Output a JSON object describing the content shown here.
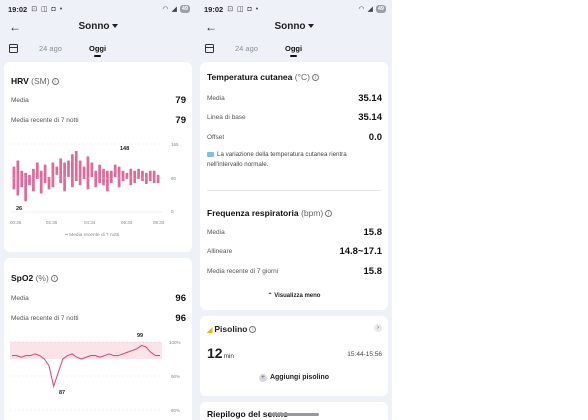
{
  "left": {
    "status": {
      "time": "19:02",
      "icons": "⊡ ◫ ◘ •",
      "battery": "49"
    },
    "header": {
      "title": "Sonno"
    },
    "tabs": {
      "prev": "24 ago",
      "current": "Oggi"
    },
    "hrv": {
      "title": "HRV",
      "unit": "(SM)",
      "rows": [
        {
          "label": "Media",
          "value": "79"
        },
        {
          "label": "Media recente di 7 notti",
          "value": "79"
        }
      ],
      "chart": {
        "y_ticks": [
          "165",
          "80",
          "0"
        ],
        "x_ticks": [
          "00:36",
          "02:35",
          "04:34",
          "06:33",
          "08:33"
        ],
        "max_label": "148",
        "min_label": "26",
        "legend": "Media recente di 7 notti"
      }
    },
    "spo2": {
      "title": "SpO2",
      "unit": "(%)",
      "rows": [
        {
          "label": "Media",
          "value": "96"
        },
        {
          "label": "Media recente di 7 notti",
          "value": "96"
        }
      ],
      "chart": {
        "y_ticks": [
          "100%",
          "90%",
          "80%"
        ],
        "max_label": "99",
        "min_label": "87"
      }
    }
  },
  "right": {
    "status": {
      "time": "19:02",
      "icons": "⊡ ◫ ◘ •",
      "battery": "49"
    },
    "header": {
      "title": "Sonno"
    },
    "tabs": {
      "prev": "24 ago",
      "current": "Oggi"
    },
    "skin_temp": {
      "title": "Temperatura cutanea",
      "unit": "(°C)",
      "rows": [
        {
          "label": "Media",
          "value": "35.14"
        },
        {
          "label": "Linea di base",
          "value": "35.14"
        },
        {
          "label": "Offset",
          "value": "0.0"
        }
      ],
      "note": "La variazione della temperatura cutanea rientra nell'intervallo normale."
    },
    "resp": {
      "title": "Frequenza respiratoria",
      "unit": "(bpm)",
      "rows": [
        {
          "label": "Media",
          "value": "15.8"
        },
        {
          "label": "Allineare",
          "value": "14.8~17.1"
        },
        {
          "label": "Media recente di 7 giorni",
          "value": "15.8"
        }
      ],
      "toggle": "Visualizza meno"
    },
    "nap": {
      "title": "Pisolino",
      "duration": "12",
      "duration_unit": "min",
      "time_range": "15:44-15:56",
      "add_label": "Aggiungi pisolino"
    },
    "summary": {
      "title": "Riepilogo del sonno"
    }
  },
  "chart_data": [
    {
      "type": "bar",
      "title": "HRV",
      "ylabel": "(SM)",
      "ylim": [
        0,
        165
      ],
      "y_ticks": [
        165,
        80,
        0
      ],
      "x_ticks": [
        "00:36",
        "02:35",
        "04:34",
        "06:33",
        "08:33"
      ],
      "range_bars": [
        [
          55,
          110
        ],
        [
          40,
          125
        ],
        [
          60,
          100
        ],
        [
          26,
          95
        ],
        [
          65,
          90
        ],
        [
          50,
          105
        ],
        [
          80,
          120
        ],
        [
          45,
          100
        ],
        [
          70,
          115
        ],
        [
          55,
          85
        ],
        [
          60,
          120
        ],
        [
          90,
          110
        ],
        [
          70,
          130
        ],
        [
          50,
          120
        ],
        [
          85,
          125
        ],
        [
          60,
          140
        ],
        [
          75,
          148
        ],
        [
          65,
          125
        ],
        [
          80,
          110
        ],
        [
          55,
          135
        ],
        [
          85,
          120
        ],
        [
          60,
          100
        ],
        [
          70,
          115
        ],
        [
          65,
          105
        ],
        [
          50,
          100
        ],
        [
          70,
          100
        ],
        [
          85,
          115
        ],
        [
          60,
          110
        ],
        [
          75,
          100
        ],
        [
          80,
          95
        ],
        [
          65,
          105
        ],
        [
          70,
          100
        ],
        [
          80,
          105
        ],
        [
          75,
          100
        ],
        [
          68,
          95
        ],
        [
          75,
          100
        ],
        [
          70,
          100
        ],
        [
          70,
          90
        ]
      ],
      "max": 148,
      "min": 26,
      "grid": true,
      "legend": "Media recente di 7 notti",
      "colors": {
        "bars": "#e0689a"
      }
    },
    {
      "type": "area",
      "title": "SpO2",
      "ylabel": "(%)",
      "ylim": [
        80,
        100
      ],
      "y_ticks": [
        100,
        90,
        80
      ],
      "values": [
        96,
        96,
        95.5,
        96,
        96,
        96.5,
        96,
        95,
        93,
        87,
        91,
        95,
        96,
        96.5,
        95.5,
        95,
        95.5,
        96,
        96,
        95.5,
        96,
        96.5,
        96,
        96,
        96.5,
        97,
        97.5,
        98,
        99,
        98.5,
        97,
        96,
        96
      ],
      "max": 99,
      "min": 87,
      "colors": {
        "line": "#d94f7a",
        "band": "#fbe3ea"
      }
    }
  ]
}
